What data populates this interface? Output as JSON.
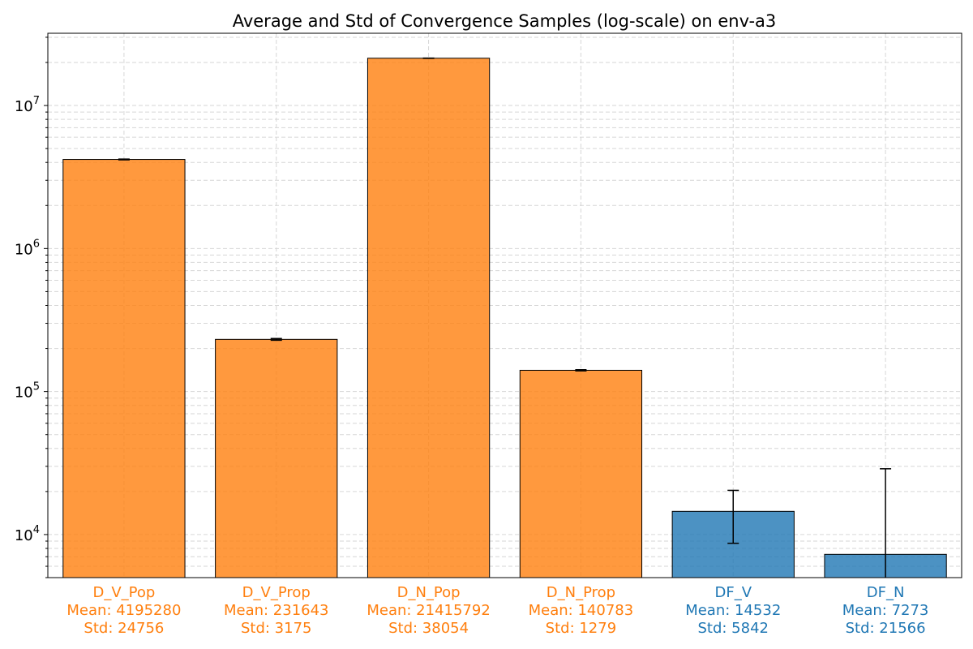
{
  "chart_data": {
    "type": "bar",
    "title": "Average and Std of Convergence Samples (log-scale) on env-a3",
    "xlabel": "",
    "ylabel": "",
    "yscale": "log",
    "ylim": [
      5000,
      32000000
    ],
    "grid": true,
    "y_ticks": [
      {
        "value": 10000,
        "base": "10",
        "exp": "4"
      },
      {
        "value": 100000,
        "base": "10",
        "exp": "5"
      },
      {
        "value": 1000000,
        "base": "10",
        "exp": "6"
      },
      {
        "value": 10000000,
        "base": "10",
        "exp": "7"
      }
    ],
    "categories": [
      {
        "name": "D_V_Pop",
        "mean": 4195280,
        "std": 24756,
        "mean_label": "Mean: 4195280",
        "std_label": "Std: 24756",
        "color": "#ff7f0e"
      },
      {
        "name": "D_V_Prop",
        "mean": 231643,
        "std": 3175,
        "mean_label": "Mean: 231643",
        "std_label": "Std: 3175",
        "color": "#ff7f0e"
      },
      {
        "name": "D_N_Pop",
        "mean": 21415792,
        "std": 38054,
        "mean_label": "Mean: 21415792",
        "std_label": "Std: 38054",
        "color": "#ff7f0e"
      },
      {
        "name": "D_N_Prop",
        "mean": 140783,
        "std": 1279,
        "mean_label": "Mean: 140783",
        "std_label": "Std: 1279",
        "color": "#ff7f0e"
      },
      {
        "name": "DF_V",
        "mean": 14532,
        "std": 5842,
        "mean_label": "Mean: 14532",
        "std_label": "Std: 5842",
        "color": "#1f77b4"
      },
      {
        "name": "DF_N",
        "mean": 7273,
        "std": 21566,
        "mean_label": "Mean: 7273",
        "std_label": "Std: 21566",
        "color": "#1f77b4"
      }
    ]
  }
}
